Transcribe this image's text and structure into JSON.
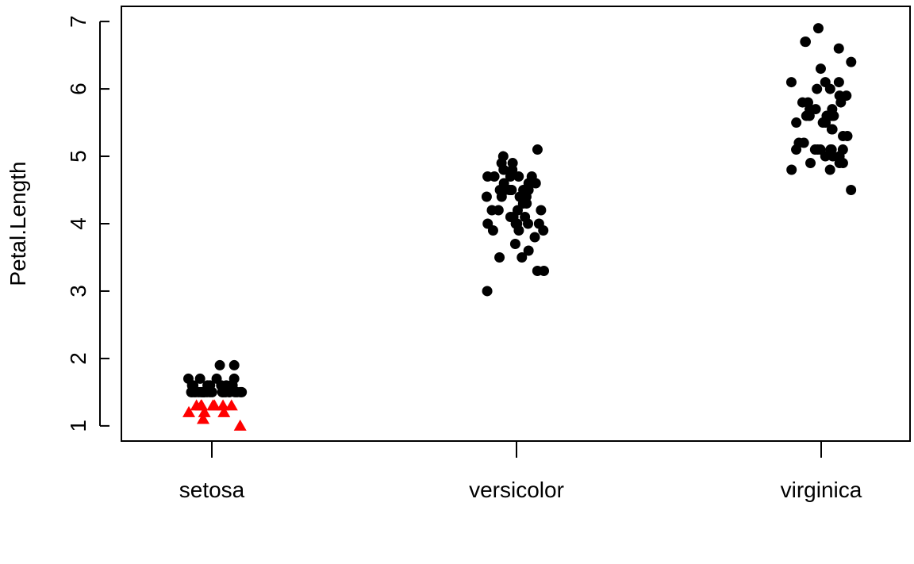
{
  "chart_data": {
    "type": "scatter",
    "title": "",
    "xlabel": "",
    "ylabel": "Petal.Length",
    "categories": [
      "setosa",
      "versicolor",
      "virginica"
    ],
    "ylim": [
      0.775,
      7.225
    ],
    "yticks": [
      "1",
      "2",
      "3",
      "4",
      "5",
      "6",
      "7"
    ],
    "grid": false,
    "colors": {
      "default": "#000000",
      "highlight": "#ff0000"
    },
    "series": [
      {
        "marker": "circle",
        "color": "#000000",
        "points": [
          [
            "setosa",
            1.6
          ],
          [
            "setosa",
            1.7
          ],
          [
            "setosa",
            1.9
          ],
          [
            "setosa",
            1.5
          ],
          [
            "setosa",
            1.5
          ],
          [
            "setosa",
            1.5
          ],
          [
            "setosa",
            1.6
          ],
          [
            "setosa",
            1.5
          ],
          [
            "setosa",
            1.5
          ],
          [
            "setosa",
            1.6
          ],
          [
            "setosa",
            1.6
          ],
          [
            "setosa",
            1.5
          ],
          [
            "setosa",
            1.5
          ],
          [
            "setosa",
            1.6
          ],
          [
            "setosa",
            1.7
          ],
          [
            "setosa",
            1.5
          ],
          [
            "setosa",
            1.5
          ],
          [
            "setosa",
            1.5
          ],
          [
            "setosa",
            1.9
          ],
          [
            "setosa",
            1.6
          ],
          [
            "setosa",
            1.7
          ],
          [
            "setosa",
            1.6
          ],
          [
            "setosa",
            1.5
          ],
          [
            "setosa",
            1.5
          ],
          [
            "setosa",
            1.5
          ],
          [
            "setosa",
            1.5
          ],
          [
            "setosa",
            1.5
          ],
          [
            "setosa",
            1.7
          ],
          [
            "setosa",
            1.5
          ],
          [
            "setosa",
            1.6
          ],
          [
            "setosa",
            1.6
          ],
          [
            "setosa",
            1.5
          ],
          [
            "setosa",
            1.5
          ],
          [
            "setosa",
            1.5
          ],
          [
            "setosa",
            1.5
          ],
          [
            "setosa",
            1.5
          ],
          [
            "setosa",
            1.5
          ],
          [
            "setosa",
            1.5
          ],
          [
            "versicolor",
            4.7
          ],
          [
            "versicolor",
            4.5
          ],
          [
            "versicolor",
            4.9
          ],
          [
            "versicolor",
            4.0
          ],
          [
            "versicolor",
            4.6
          ],
          [
            "versicolor",
            4.5
          ],
          [
            "versicolor",
            4.7
          ],
          [
            "versicolor",
            3.3
          ],
          [
            "versicolor",
            4.6
          ],
          [
            "versicolor",
            3.9
          ],
          [
            "versicolor",
            3.5
          ],
          [
            "versicolor",
            4.2
          ],
          [
            "versicolor",
            4.0
          ],
          [
            "versicolor",
            4.7
          ],
          [
            "versicolor",
            3.6
          ],
          [
            "versicolor",
            4.4
          ],
          [
            "versicolor",
            4.5
          ],
          [
            "versicolor",
            4.1
          ],
          [
            "versicolor",
            4.5
          ],
          [
            "versicolor",
            3.9
          ],
          [
            "versicolor",
            4.8
          ],
          [
            "versicolor",
            4.0
          ],
          [
            "versicolor",
            4.9
          ],
          [
            "versicolor",
            4.7
          ],
          [
            "versicolor",
            4.3
          ],
          [
            "versicolor",
            4.4
          ],
          [
            "versicolor",
            4.8
          ],
          [
            "versicolor",
            5.0
          ],
          [
            "versicolor",
            4.5
          ],
          [
            "versicolor",
            3.5
          ],
          [
            "versicolor",
            3.8
          ],
          [
            "versicolor",
            3.7
          ],
          [
            "versicolor",
            3.9
          ],
          [
            "versicolor",
            5.1
          ],
          [
            "versicolor",
            4.5
          ],
          [
            "versicolor",
            4.5
          ],
          [
            "versicolor",
            4.7
          ],
          [
            "versicolor",
            4.4
          ],
          [
            "versicolor",
            4.1
          ],
          [
            "versicolor",
            4.0
          ],
          [
            "versicolor",
            4.4
          ],
          [
            "versicolor",
            4.6
          ],
          [
            "versicolor",
            4.0
          ],
          [
            "versicolor",
            3.3
          ],
          [
            "versicolor",
            4.2
          ],
          [
            "versicolor",
            4.2
          ],
          [
            "versicolor",
            4.2
          ],
          [
            "versicolor",
            4.3
          ],
          [
            "versicolor",
            3.0
          ],
          [
            "versicolor",
            4.1
          ],
          [
            "virginica",
            6.0
          ],
          [
            "virginica",
            5.1
          ],
          [
            "virginica",
            5.9
          ],
          [
            "virginica",
            5.6
          ],
          [
            "virginica",
            5.8
          ],
          [
            "virginica",
            6.6
          ],
          [
            "virginica",
            4.5
          ],
          [
            "virginica",
            6.3
          ],
          [
            "virginica",
            5.8
          ],
          [
            "virginica",
            6.1
          ],
          [
            "virginica",
            5.1
          ],
          [
            "virginica",
            5.3
          ],
          [
            "virginica",
            5.5
          ],
          [
            "virginica",
            5.0
          ],
          [
            "virginica",
            5.1
          ],
          [
            "virginica",
            5.3
          ],
          [
            "virginica",
            5.5
          ],
          [
            "virginica",
            6.7
          ],
          [
            "virginica",
            6.9
          ],
          [
            "virginica",
            5.0
          ],
          [
            "virginica",
            5.7
          ],
          [
            "virginica",
            4.9
          ],
          [
            "virginica",
            6.7
          ],
          [
            "virginica",
            4.9
          ],
          [
            "virginica",
            5.7
          ],
          [
            "virginica",
            6.0
          ],
          [
            "virginica",
            4.8
          ],
          [
            "virginica",
            4.9
          ],
          [
            "virginica",
            5.6
          ],
          [
            "virginica",
            5.8
          ],
          [
            "virginica",
            6.1
          ],
          [
            "virginica",
            6.4
          ],
          [
            "virginica",
            5.6
          ],
          [
            "virginica",
            5.1
          ],
          [
            "virginica",
            5.6
          ],
          [
            "virginica",
            6.1
          ],
          [
            "virginica",
            5.6
          ],
          [
            "virginica",
            5.5
          ],
          [
            "virginica",
            4.8
          ],
          [
            "virginica",
            5.4
          ],
          [
            "virginica",
            5.6
          ],
          [
            "virginica",
            5.1
          ],
          [
            "virginica",
            5.1
          ],
          [
            "virginica",
            5.9
          ],
          [
            "virginica",
            5.7
          ],
          [
            "virginica",
            5.2
          ],
          [
            "virginica",
            5.0
          ],
          [
            "virginica",
            5.2
          ],
          [
            "virginica",
            5.4
          ],
          [
            "virginica",
            5.1
          ]
        ]
      },
      {
        "marker": "triangle",
        "color": "#ff0000",
        "points": [
          [
            "setosa",
            1.3
          ],
          [
            "setosa",
            1.3
          ],
          [
            "setosa",
            1.1
          ],
          [
            "setosa",
            1.2
          ],
          [
            "setosa",
            1.3
          ],
          [
            "setosa",
            1.3
          ],
          [
            "setosa",
            1.2
          ],
          [
            "setosa",
            1.3
          ],
          [
            "setosa",
            1.0
          ],
          [
            "setosa",
            1.2
          ],
          [
            "setosa",
            1.3
          ],
          [
            "setosa",
            1.3
          ]
        ]
      }
    ]
  }
}
